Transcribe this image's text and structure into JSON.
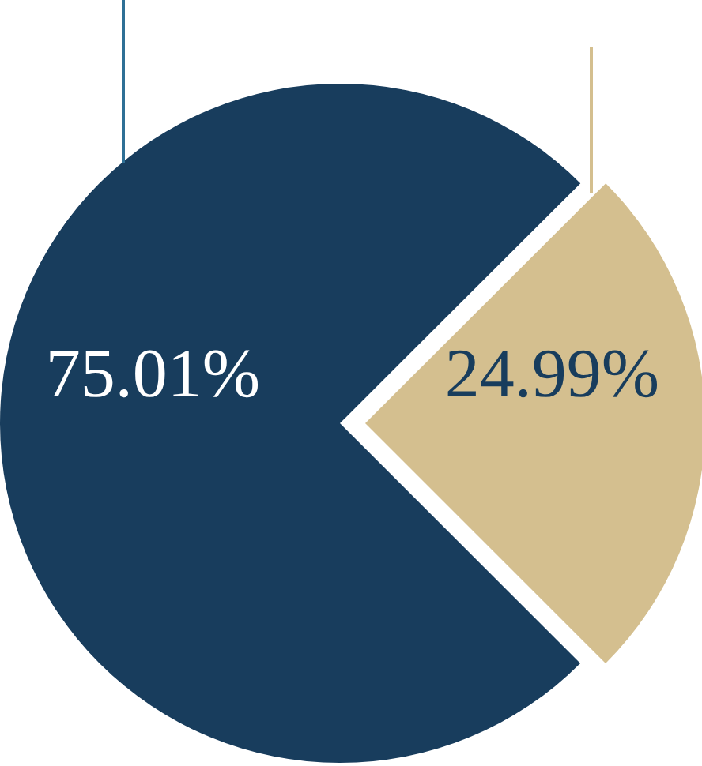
{
  "chart_data": {
    "type": "pie",
    "categories": [
      null,
      null
    ],
    "values": [
      75.01,
      24.99
    ],
    "colors": [
      "#183d5d",
      "#d4bf8f"
    ],
    "value_labels": [
      "75.01%",
      "24.99%"
    ]
  }
}
